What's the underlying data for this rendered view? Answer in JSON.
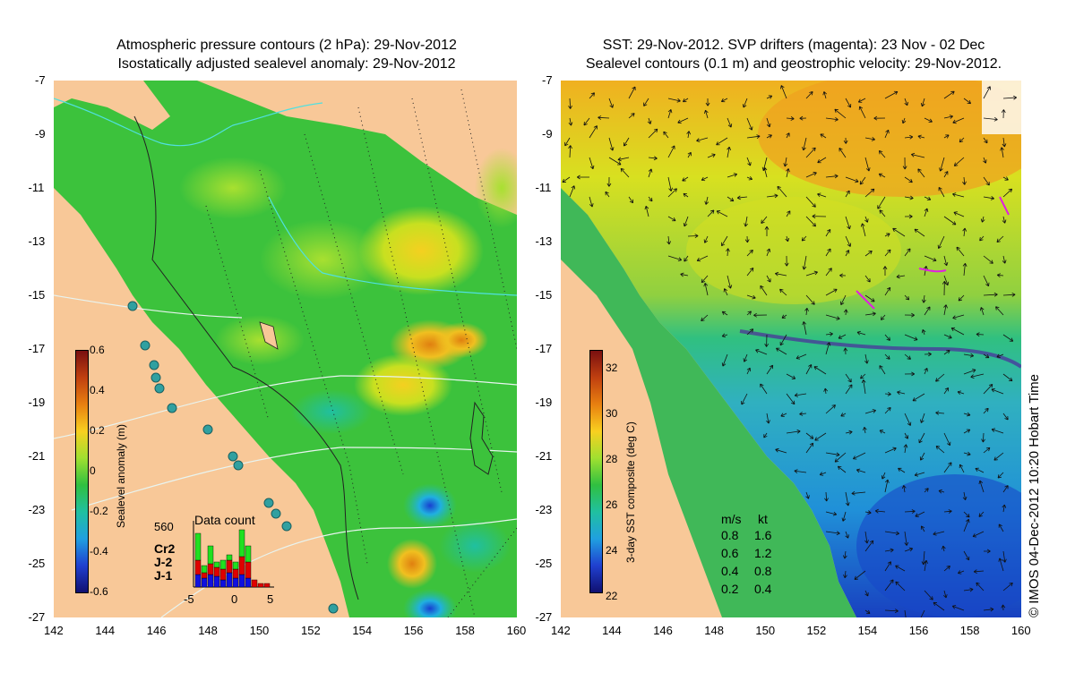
{
  "left_panel": {
    "title_line1": "Atmospheric pressure contours (2 hPa): 29-Nov-2012",
    "title_line2": "Isostatically adjusted sealevel anomaly: 29-Nov-2012",
    "colorbar": {
      "label": "Sealevel anomaly (m)",
      "ticks": [
        "0.6",
        "0.4",
        "0.2",
        "0",
        "-0.2",
        "-0.4",
        "-0.6"
      ]
    },
    "data_count": {
      "title": "Data count",
      "ymax_label": "560",
      "xticks": [
        "-5",
        "0",
        "5"
      ],
      "legend": [
        {
          "name": "Cr2",
          "color": "#20e020"
        },
        {
          "name": "J-2",
          "color": "#e00000"
        },
        {
          "name": "J-1",
          "color": "#1010e0"
        }
      ]
    }
  },
  "right_panel": {
    "title_line1": "SST: 29-Nov-2012. SVP drifters (magenta): 23 Nov - 02 Dec",
    "title_line2": "Sealevel contours (0.1 m) and geostrophic velocity: 29-Nov-2012.",
    "colorbar": {
      "label": "3-day SST composite (deg C)",
      "ticks": [
        "32",
        "30",
        "28",
        "26",
        "24",
        "22"
      ]
    },
    "velocity_legend": {
      "header_ms": "m/s",
      "header_kt": "kt",
      "rows": [
        {
          "ms": "0.8",
          "kt": "1.6"
        },
        {
          "ms": "0.6",
          "kt": "1.2"
        },
        {
          "ms": "0.4",
          "kt": "0.8"
        },
        {
          "ms": "0.2",
          "kt": "0.4"
        }
      ]
    }
  },
  "axes": {
    "lat_ticks": [
      "-7",
      "-9",
      "-11",
      "-13",
      "-15",
      "-17",
      "-19",
      "-21",
      "-23",
      "-25",
      "-27"
    ],
    "lon_ticks": [
      "142",
      "144",
      "146",
      "148",
      "150",
      "152",
      "154",
      "156",
      "158",
      "160"
    ],
    "lon_range": [
      142,
      160
    ],
    "lat_range": [
      -27,
      -7
    ]
  },
  "credit": "© IMOS 04-Dec-2012 10:20 Hobart Time"
}
